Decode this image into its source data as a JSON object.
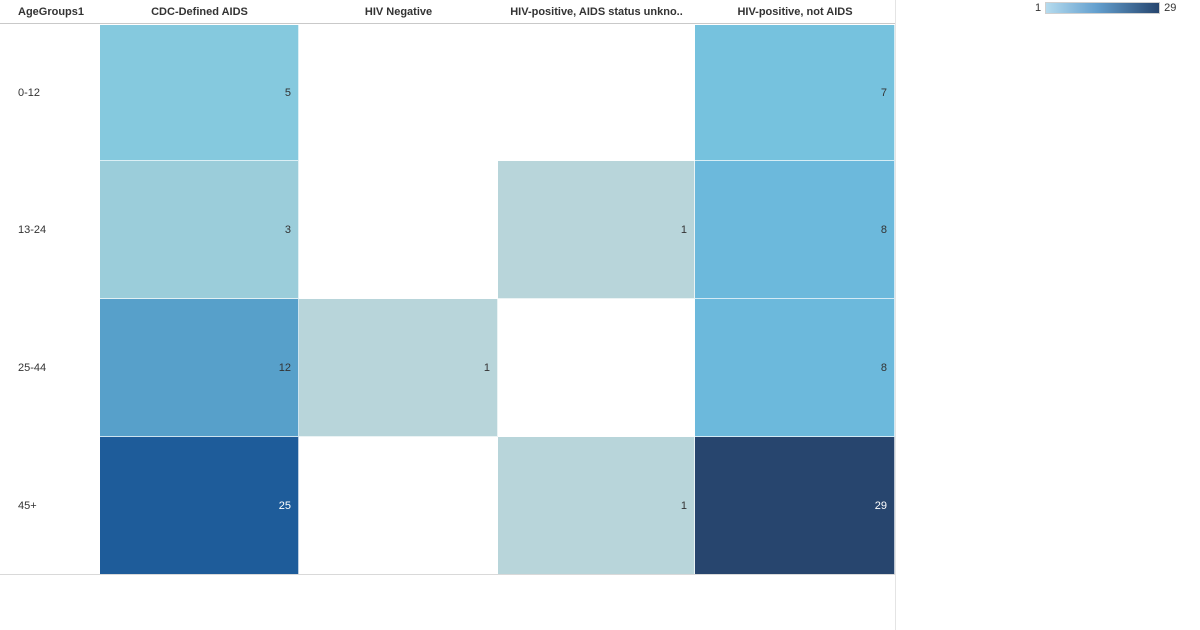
{
  "legend": {
    "min_label": "1",
    "max_label": "29",
    "gradient_start_color": "#b5dbee",
    "gradient_mid_color": "#639fce",
    "gradient_end_color": "#26456e"
  },
  "chart_data": {
    "type": "heatmap",
    "title": "",
    "row_field_label": "AgeGroups1",
    "x_categories": [
      "CDC-Defined AIDS",
      "HIV Negative",
      "HIV-positive, AIDS status unkno..",
      "HIV-positive, not AIDS"
    ],
    "y_categories": [
      "0-12",
      "13-24",
      "25-44",
      "45+"
    ],
    "values": [
      [
        5,
        null,
        null,
        7
      ],
      [
        3,
        null,
        1,
        8
      ],
      [
        12,
        1,
        null,
        8
      ],
      [
        25,
        null,
        1,
        29
      ]
    ],
    "color_scale": {
      "min": 1,
      "max": 29,
      "min_color": "#b5dbee",
      "max_color": "#26456e"
    },
    "cell_colors": {
      "1": "#b8d5da",
      "3": "#9bcdda",
      "5": "#85c9de",
      "7": "#76c2de",
      "8": "#6cb9dc",
      "12": "#57a0ca",
      "25": "#1e5c9a",
      "29": "#27456e"
    },
    "white_text_values": [
      25,
      29
    ],
    "legend_position": "top-right",
    "grid": "off"
  },
  "colors": {
    "header_text": "#333333",
    "cell_text_dark": "#333333",
    "cell_text_light": "#ffffff",
    "header_rule": "#c9c9c9",
    "table_border": "#d9d9d9",
    "panel_border": "#e4e4e4",
    "background": "#ffffff"
  }
}
